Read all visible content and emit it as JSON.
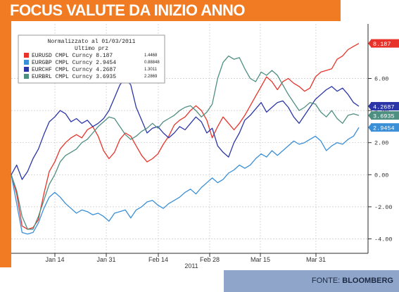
{
  "headline": "FOCUS VALUTE DA INIZIO ANNO",
  "source": {
    "prefix": "FONTE: ",
    "name": "BLOOMBERG"
  },
  "colors": {
    "orange": "#f07b22",
    "source_bar": "#8fa5c9",
    "eurusd": "#e8332a",
    "eurgbp": "#3a8fd6",
    "eurchf": "#2a36a8",
    "eurbrl": "#4f8f82"
  },
  "chart_data": {
    "type": "line",
    "legend_title": "Normalizzato al 01/03/2011",
    "legend_subtitle": "Ultimo prz",
    "legend_placement": "top-left",
    "x_tick_labels": [
      "Jan 14",
      "Jan 31",
      "Feb 14",
      "Feb 28",
      "Mar 15",
      "Mar 31"
    ],
    "x_year_label": "2011",
    "y_tick_labels": [
      "6.00",
      "4.00",
      "2.00",
      "0.00",
      "-2.00",
      "-4.00"
    ],
    "y_ticks": [
      6,
      4,
      2,
      0,
      -2,
      -4
    ],
    "ylim": [
      -4.9,
      9.4
    ],
    "grid": true,
    "series": [
      {
        "name": "EURUSD CMPL Curncy 8.187",
        "legend_value": "1.4468",
        "last_label": "8.187",
        "color": "#e8332a",
        "values": [
          0,
          -1.2,
          -3.2,
          -3.4,
          -3.3,
          -2.8,
          -1.2,
          0.2,
          0.8,
          1.6,
          2.0,
          2.3,
          2.5,
          2.3,
          2.8,
          3.0,
          2.4,
          1.5,
          1.0,
          1.4,
          2.2,
          2.6,
          2.4,
          1.8,
          1.2,
          0.8,
          1.0,
          1.3,
          1.9,
          2.4,
          3.1,
          3.4,
          3.6,
          4.0,
          4.3,
          4.0,
          3.4,
          2.3,
          3.0,
          3.6,
          3.2,
          2.8,
          3.2,
          3.7,
          4.3,
          4.9,
          5.5,
          6.1,
          5.8,
          5.3,
          5.8,
          6.0,
          5.7,
          5.5,
          5.2,
          5.4,
          6.1,
          6.4,
          6.5,
          6.6,
          7.2,
          7.4,
          7.8,
          8.0,
          8.187
        ]
      },
      {
        "name": "EURGBP CMPL Curncy 2.9454",
        "legend_value": "0.88848",
        "last_label": "2.9454",
        "color": "#3a8fd6",
        "values": [
          0,
          -1.8,
          -3.6,
          -3.7,
          -3.6,
          -3.0,
          -2.1,
          -1.4,
          -1.1,
          -1.4,
          -1.8,
          -2.1,
          -2.4,
          -2.2,
          -2.3,
          -2.5,
          -2.4,
          -2.6,
          -2.9,
          -2.4,
          -2.3,
          -2.2,
          -2.7,
          -2.2,
          -2.0,
          -1.7,
          -1.6,
          -1.9,
          -2.1,
          -1.8,
          -1.6,
          -1.4,
          -1.1,
          -0.9,
          -1.2,
          -0.8,
          -0.5,
          -0.2,
          -0.5,
          -0.3,
          0.1,
          0.3,
          0.6,
          0.4,
          0.6,
          1.0,
          1.3,
          1.1,
          1.5,
          1.2,
          1.5,
          1.8,
          2.1,
          1.9,
          2.0,
          2.2,
          2.4,
          2.1,
          1.5,
          1.8,
          2.0,
          1.9,
          2.2,
          2.4,
          2.9454
        ]
      },
      {
        "name": "EURCHF CMPL Curncy 4.2687",
        "legend_value": "1.3011",
        "last_label": "4.2687",
        "color": "#2a36a8",
        "values": [
          0,
          0.6,
          -0.3,
          0.2,
          1.0,
          1.6,
          2.5,
          3.3,
          3.6,
          4.0,
          3.8,
          3.3,
          3.5,
          3.2,
          3.4,
          3.0,
          3.2,
          3.5,
          4.0,
          4.8,
          5.6,
          6.0,
          5.6,
          4.2,
          3.4,
          2.6,
          2.9,
          3.0,
          2.6,
          2.3,
          2.6,
          3.0,
          2.8,
          3.2,
          3.6,
          3.3,
          2.6,
          2.9,
          1.8,
          1.4,
          1.1,
          2.0,
          2.6,
          3.4,
          3.7,
          4.1,
          4.5,
          3.9,
          4.2,
          4.5,
          4.6,
          4.2,
          3.6,
          3.2,
          3.7,
          4.2,
          4.7,
          5.0,
          5.3,
          5.5,
          5.2,
          5.4,
          5.0,
          4.5,
          4.2687
        ]
      },
      {
        "name": "EURBRL CMPL Curncy 3.6935",
        "legend_value": "2.2869",
        "last_label": "3.6935",
        "color": "#4f8f82",
        "values": [
          0,
          -1.0,
          -2.6,
          -3.4,
          -3.4,
          -2.6,
          -1.6,
          -0.6,
          0.0,
          0.8,
          1.2,
          1.4,
          1.6,
          2.0,
          2.2,
          2.6,
          3.0,
          3.3,
          3.6,
          3.5,
          3.0,
          2.5,
          2.2,
          2.4,
          2.7,
          2.9,
          3.2,
          2.9,
          3.3,
          3.5,
          3.7,
          4.0,
          4.2,
          4.3,
          4.0,
          3.6,
          3.9,
          4.4,
          6.0,
          7.0,
          7.4,
          7.2,
          7.3,
          6.6,
          6.0,
          5.8,
          6.4,
          6.2,
          6.5,
          6.2,
          5.6,
          5.0,
          4.5,
          4.0,
          4.2,
          4.5,
          4.4,
          3.9,
          3.6,
          4.0,
          3.5,
          3.2,
          3.7,
          3.8,
          3.6935
        ]
      }
    ]
  }
}
